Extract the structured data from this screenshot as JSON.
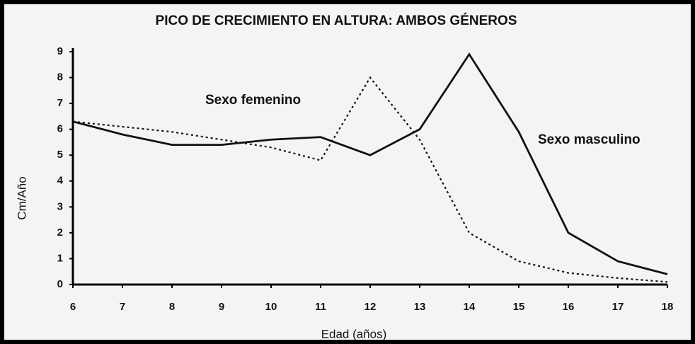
{
  "chart_data": {
    "type": "line",
    "title": "PICO DE CRECIMIENTO EN ALTURA: AMBOS GÉNEROS",
    "x_label": "Edad (años)",
    "y_label": "Cm/Año",
    "x": [
      6,
      7,
      8,
      9,
      10,
      11,
      12,
      13,
      14,
      15,
      16,
      17,
      18
    ],
    "series": [
      {
        "name": "Sexo femenino",
        "color": "#111111",
        "style": "dotted",
        "values": [
          6.3,
          6.1,
          5.9,
          5.6,
          5.3,
          4.8,
          8.0,
          5.6,
          2.0,
          0.9,
          0.45,
          0.25,
          0.1
        ]
      },
      {
        "name": "Sexo masculino",
        "color": "#111111",
        "style": "solid",
        "values": [
          6.3,
          5.8,
          5.4,
          5.4,
          5.6,
          5.7,
          5.0,
          6.0,
          8.9,
          5.9,
          2.0,
          0.9,
          0.4
        ]
      }
    ],
    "xlim": [
      6,
      18
    ],
    "xticks": [
      6,
      7,
      8,
      9,
      10,
      11,
      12,
      13,
      14,
      15,
      16,
      17,
      18
    ],
    "ylim": [
      0,
      9
    ],
    "yticks": [
      0,
      1,
      2,
      3,
      4,
      5,
      6,
      7,
      8,
      9
    ]
  }
}
